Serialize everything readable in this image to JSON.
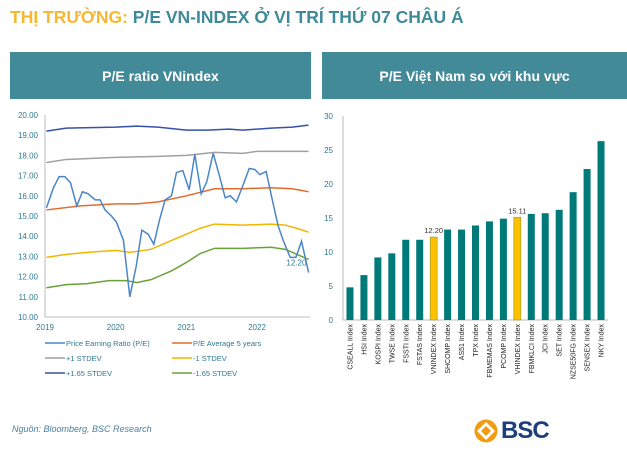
{
  "header": {
    "title_prefix": "THỊ TRƯỜNG:",
    "title_main": "P/E VN-INDEX Ở VỊ TRÍ THỨ 07 CHÂU Á"
  },
  "source": "Nguồn: Bloomberg, BSC Research",
  "logo_text": "BSC",
  "colors": {
    "teal": "#438a99",
    "bar": "#007a78",
    "highlight": "#ffc000"
  },
  "chart_data": [
    {
      "type": "line",
      "title": "P/E ratio VNindex",
      "ylim": [
        10,
        20
      ],
      "yticks": [
        "10.00",
        "11.00",
        "12.00",
        "13.00",
        "14.00",
        "15.00",
        "16.00",
        "17.00",
        "18.00",
        "19.00",
        "20.00"
      ],
      "xlim": [
        2019,
        2022.75
      ],
      "xticks": [
        "2019",
        "2020",
        "2021",
        "2022"
      ],
      "annotation": "12.20",
      "legend_position": "bottom",
      "series": [
        {
          "name": "Price Earning Ratio (P/E)",
          "color": "#4a86c8",
          "points": [
            [
              2019.02,
              15.4
            ],
            [
              2019.12,
              16.4
            ],
            [
              2019.2,
              16.95
            ],
            [
              2019.28,
              16.95
            ],
            [
              2019.36,
              16.65
            ],
            [
              2019.45,
              15.5
            ],
            [
              2019.53,
              16.2
            ],
            [
              2019.61,
              16.1
            ],
            [
              2019.71,
              15.8
            ],
            [
              2019.78,
              15.8
            ],
            [
              2019.85,
              15.3
            ],
            [
              2019.94,
              15.0
            ],
            [
              2020.01,
              14.7
            ],
            [
              2020.11,
              13.8
            ],
            [
              2020.2,
              11.0
            ],
            [
              2020.29,
              12.5
            ],
            [
              2020.37,
              14.3
            ],
            [
              2020.46,
              14.1
            ],
            [
              2020.54,
              13.6
            ],
            [
              2020.62,
              14.8
            ],
            [
              2020.7,
              15.8
            ],
            [
              2020.79,
              16.0
            ],
            [
              2020.86,
              17.15
            ],
            [
              2020.95,
              17.25
            ],
            [
              2021.04,
              16.3
            ],
            [
              2021.12,
              18.05
            ],
            [
              2021.21,
              16.1
            ],
            [
              2021.29,
              16.7
            ],
            [
              2021.38,
              18.1
            ],
            [
              2021.46,
              17.1
            ],
            [
              2021.55,
              15.9
            ],
            [
              2021.62,
              16.0
            ],
            [
              2021.71,
              15.7
            ],
            [
              2021.81,
              16.6
            ],
            [
              2021.89,
              17.35
            ],
            [
              2021.97,
              17.3
            ],
            [
              2022.04,
              17.05
            ],
            [
              2022.13,
              17.2
            ],
            [
              2022.21,
              15.9
            ],
            [
              2022.3,
              14.5
            ],
            [
              2022.37,
              13.8
            ],
            [
              2022.47,
              12.95
            ],
            [
              2022.55,
              12.95
            ],
            [
              2022.63,
              13.75
            ],
            [
              2022.73,
              12.2
            ]
          ]
        },
        {
          "name": "P/E Average 5 years",
          "color": "#e46c2a",
          "points": [
            [
              2019.02,
              15.3
            ],
            [
              2019.5,
              15.5
            ],
            [
              2020.0,
              15.6
            ],
            [
              2020.3,
              15.6
            ],
            [
              2020.6,
              15.7
            ],
            [
              2021.0,
              16.0
            ],
            [
              2021.4,
              16.35
            ],
            [
              2021.8,
              16.35
            ],
            [
              2022.2,
              16.4
            ],
            [
              2022.5,
              16.35
            ],
            [
              2022.73,
              16.2
            ]
          ]
        },
        {
          "name": "+1 STDEV",
          "color": "#a0a0a0",
          "points": [
            [
              2019.02,
              17.65
            ],
            [
              2019.3,
              17.8
            ],
            [
              2020.0,
              17.9
            ],
            [
              2020.6,
              17.95
            ],
            [
              2021.0,
              18.0
            ],
            [
              2021.4,
              18.15
            ],
            [
              2021.8,
              18.1
            ],
            [
              2022.0,
              18.2
            ],
            [
              2022.73,
              18.2
            ]
          ]
        },
        {
          "name": "-1 STDEV",
          "color": "#f2b600",
          "points": [
            [
              2019.02,
              12.95
            ],
            [
              2019.3,
              13.1
            ],
            [
              2019.6,
              13.2
            ],
            [
              2020.0,
              13.3
            ],
            [
              2020.2,
              13.2
            ],
            [
              2020.5,
              13.35
            ],
            [
              2020.8,
              13.8
            ],
            [
              2021.0,
              14.1
            ],
            [
              2021.2,
              14.4
            ],
            [
              2021.4,
              14.6
            ],
            [
              2021.8,
              14.55
            ],
            [
              2022.2,
              14.6
            ],
            [
              2022.4,
              14.55
            ],
            [
              2022.6,
              14.35
            ],
            [
              2022.73,
              14.2
            ]
          ]
        },
        {
          "name": "+1.65 STDEV",
          "color": "#3452a8",
          "points": [
            [
              2019.02,
              19.2
            ],
            [
              2019.3,
              19.35
            ],
            [
              2020.0,
              19.4
            ],
            [
              2020.3,
              19.45
            ],
            [
              2020.6,
              19.4
            ],
            [
              2021.0,
              19.25
            ],
            [
              2021.3,
              19.25
            ],
            [
              2021.6,
              19.3
            ],
            [
              2021.8,
              19.25
            ],
            [
              2022.2,
              19.35
            ],
            [
              2022.5,
              19.4
            ],
            [
              2022.73,
              19.5
            ]
          ]
        },
        {
          "name": "-1.65 STDEV",
          "color": "#6aa23a",
          "points": [
            [
              2019.02,
              11.45
            ],
            [
              2019.3,
              11.6
            ],
            [
              2019.6,
              11.65
            ],
            [
              2019.9,
              11.8
            ],
            [
              2020.15,
              11.8
            ],
            [
              2020.3,
              11.7
            ],
            [
              2020.5,
              11.85
            ],
            [
              2020.8,
              12.3
            ],
            [
              2021.0,
              12.7
            ],
            [
              2021.2,
              13.15
            ],
            [
              2021.4,
              13.4
            ],
            [
              2021.8,
              13.4
            ],
            [
              2022.2,
              13.45
            ],
            [
              2022.4,
              13.35
            ],
            [
              2022.6,
              13.05
            ],
            [
              2022.73,
              12.85
            ]
          ]
        }
      ]
    },
    {
      "type": "bar",
      "title": "P/E Việt Nam so với khu vực",
      "ylim": [
        0,
        30
      ],
      "yticks": [
        "0",
        "5",
        "10",
        "15",
        "20",
        "25",
        "30"
      ],
      "categories": [
        "CSEALL Index",
        "HSI Index",
        "KOSPI Index",
        "TWSE Index",
        "FSSTI Index",
        "FSTAS Index",
        "VNINDEX Index",
        "SHCOMP Index",
        "AS51 Index",
        "TPX Index",
        "FBMEMAS Index",
        "PCOMP Index",
        "VHINDEX Index",
        "FBMKLCI Index",
        "JCI Index",
        "SET Index",
        "NZSE50FG Index",
        "SENSEX Index",
        "NKY Index"
      ],
      "values": [
        4.8,
        6.6,
        9.2,
        9.8,
        11.8,
        11.8,
        12.2,
        13.3,
        13.3,
        13.9,
        14.5,
        14.9,
        15.11,
        15.6,
        15.7,
        16.2,
        18.8,
        22.2,
        26.3
      ],
      "highlighted": [
        "VNINDEX Index",
        "VHINDEX Index"
      ],
      "data_labels": {
        "VNINDEX Index": "12.20",
        "VHINDEX Index": "15.11"
      }
    }
  ]
}
